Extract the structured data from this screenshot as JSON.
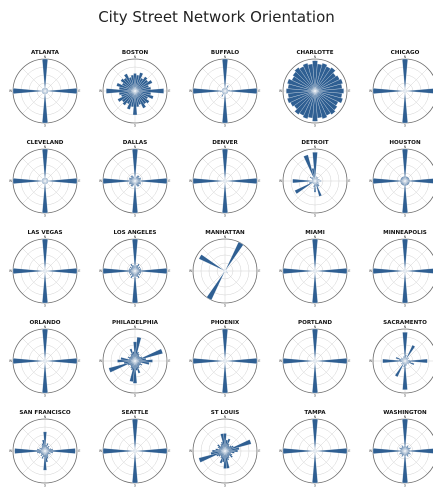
{
  "title": "City Street Network Orientation",
  "colors": {
    "bar": "#2f5f92",
    "ring": "#d2d2d2",
    "outer": "#6a6a6a"
  },
  "chart_data": {
    "type": "polar-bar",
    "title": "City Street Network Orientation",
    "direction_labels": [
      "N",
      "E",
      "S",
      "W"
    ],
    "bins": 36,
    "cities": [
      {
        "name": "ATLANTA",
        "values": [
          1,
          0.1,
          0.1,
          0.1,
          0.1,
          0.1,
          0.1,
          0.1,
          0.1,
          1,
          0.1,
          0.1,
          0.1,
          0.1,
          0.1,
          0.1,
          0.1,
          0.1,
          1,
          0.1,
          0.1,
          0.1,
          0.1,
          0.1,
          0.1,
          0.1,
          0.1,
          1,
          0.1,
          0.1,
          0.1,
          0.1,
          0.1,
          0.1,
          0.1,
          0.1
        ]
      },
      {
        "name": "BOSTON",
        "values": [
          0.55,
          0.5,
          0.6,
          0.45,
          0.55,
          0.5,
          0.6,
          0.45,
          0.5,
          0.9,
          0.5,
          0.6,
          0.45,
          0.55,
          0.5,
          0.6,
          0.45,
          0.5,
          0.75,
          0.5,
          0.6,
          0.45,
          0.55,
          0.5,
          0.6,
          0.45,
          0.5,
          0.9,
          0.5,
          0.6,
          0.45,
          0.55,
          0.5,
          0.6,
          0.45,
          0.5
        ]
      },
      {
        "name": "BUFFALO",
        "values": [
          1,
          0.1,
          0.1,
          0.2,
          0.1,
          0.1,
          0.1,
          0.1,
          0.15,
          1,
          0.1,
          0.1,
          0.1,
          0.1,
          0.1,
          0.1,
          0.1,
          0.1,
          1,
          0.1,
          0.1,
          0.2,
          0.1,
          0.1,
          0.1,
          0.1,
          0.15,
          1,
          0.1,
          0.1,
          0.1,
          0.1,
          0.1,
          0.1,
          0.1,
          0.1
        ]
      },
      {
        "name": "CHARLOTTE",
        "values": [
          0.95,
          0.85,
          0.9,
          0.85,
          0.9,
          0.8,
          0.85,
          0.9,
          0.85,
          0.9,
          0.85,
          0.9,
          0.8,
          0.85,
          0.9,
          0.85,
          0.9,
          0.85,
          0.95,
          0.85,
          0.9,
          0.85,
          0.9,
          0.8,
          0.85,
          0.9,
          0.85,
          0.9,
          0.85,
          0.9,
          0.8,
          0.85,
          0.9,
          0.85,
          0.9,
          0.85
        ]
      },
      {
        "name": "CHICAGO",
        "values": [
          1,
          0.05,
          0.05,
          0.05,
          0.05,
          0.05,
          0.05,
          0.05,
          0.05,
          1,
          0.05,
          0.05,
          0.05,
          0.05,
          0.05,
          0.05,
          0.05,
          0.05,
          1,
          0.05,
          0.05,
          0.05,
          0.05,
          0.05,
          0.05,
          0.05,
          0.05,
          1,
          0.05,
          0.05,
          0.05,
          0.05,
          0.05,
          0.05,
          0.05,
          0.05
        ]
      },
      {
        "name": "CLEVELAND",
        "values": [
          1,
          0.1,
          0.1,
          0.1,
          0.1,
          0.1,
          0.1,
          0.1,
          0.1,
          1,
          0.1,
          0.1,
          0.1,
          0.1,
          0.1,
          0.1,
          0.1,
          0.1,
          1,
          0.1,
          0.1,
          0.1,
          0.1,
          0.1,
          0.1,
          0.1,
          0.1,
          1,
          0.1,
          0.1,
          0.1,
          0.1,
          0.1,
          0.1,
          0.1,
          0.1
        ]
      },
      {
        "name": "DALLAS",
        "values": [
          1,
          0.1,
          0.15,
          0.2,
          0.2,
          0.15,
          0.2,
          0.2,
          0.15,
          1,
          0.15,
          0.2,
          0.2,
          0.15,
          0.2,
          0.2,
          0.15,
          0.1,
          1,
          0.1,
          0.15,
          0.2,
          0.2,
          0.15,
          0.2,
          0.2,
          0.15,
          1,
          0.15,
          0.2,
          0.2,
          0.15,
          0.2,
          0.2,
          0.15,
          0.1
        ]
      },
      {
        "name": "DENVER",
        "values": [
          1,
          0.05,
          0.05,
          0.05,
          0.05,
          0.05,
          0.05,
          0.05,
          0.05,
          1,
          0.05,
          0.05,
          0.05,
          0.05,
          0.05,
          0.05,
          0.05,
          0.05,
          1,
          0.05,
          0.05,
          0.05,
          0.05,
          0.05,
          0.05,
          0.05,
          0.05,
          1,
          0.05,
          0.05,
          0.05,
          0.05,
          0.05,
          0.05,
          0.05,
          0.05
        ]
      },
      {
        "name": "DETROIT",
        "values": [
          0.9,
          0.1,
          0.15,
          0.1,
          0.15,
          0.1,
          0.1,
          0.15,
          0.1,
          0.2,
          0.1,
          0.1,
          0.15,
          0.1,
          0.2,
          0.2,
          0.5,
          0.15,
          0.35,
          0.2,
          0.1,
          0.1,
          0.1,
          0.1,
          0.7,
          0.2,
          0.1,
          0.7,
          0.1,
          0.1,
          0.1,
          0.2,
          0.15,
          0.1,
          0.85,
          0.4
        ]
      },
      {
        "name": "HOUSTON",
        "values": [
          1,
          0.15,
          0.15,
          0.15,
          0.15,
          0.15,
          0.15,
          0.15,
          0.15,
          1,
          0.15,
          0.15,
          0.15,
          0.15,
          0.15,
          0.15,
          0.15,
          0.15,
          1,
          0.15,
          0.15,
          0.15,
          0.15,
          0.15,
          0.15,
          0.15,
          0.15,
          1,
          0.15,
          0.15,
          0.15,
          0.15,
          0.15,
          0.15,
          0.15,
          0.15
        ]
      },
      {
        "name": "LAS VEGAS",
        "values": [
          1,
          0.05,
          0.05,
          0.05,
          0.05,
          0.05,
          0.05,
          0.05,
          0.05,
          1,
          0.05,
          0.05,
          0.05,
          0.05,
          0.05,
          0.05,
          0.05,
          0.05,
          1,
          0.05,
          0.05,
          0.05,
          0.05,
          0.05,
          0.05,
          0.05,
          0.05,
          1,
          0.05,
          0.05,
          0.05,
          0.05,
          0.05,
          0.05,
          0.05,
          0.05
        ]
      },
      {
        "name": "LOS ANGELES",
        "values": [
          1,
          0.15,
          0.2,
          0.25,
          0.15,
          0.2,
          0.15,
          0.2,
          0.2,
          1,
          0.2,
          0.2,
          0.15,
          0.2,
          0.15,
          0.25,
          0.2,
          0.15,
          1,
          0.15,
          0.2,
          0.25,
          0.15,
          0.2,
          0.15,
          0.2,
          0.2,
          1,
          0.2,
          0.2,
          0.15,
          0.2,
          0.15,
          0.25,
          0.2,
          0.15
        ]
      },
      {
        "name": "MANHATTAN",
        "values": [
          0.05,
          0.05,
          0.05,
          1,
          0.1,
          0.05,
          0.05,
          0.05,
          0.05,
          0.05,
          0.05,
          0.05,
          0.1,
          0.05,
          0.05,
          0.05,
          0.05,
          0.05,
          0.05,
          0.05,
          0.05,
          1,
          0.1,
          0.05,
          0.05,
          0.05,
          0.05,
          0.05,
          0.05,
          0.05,
          0.9,
          0.05,
          0.05,
          0.05,
          0.05,
          0.05
        ]
      },
      {
        "name": "MIAMI",
        "values": [
          1,
          0.05,
          0.05,
          0.05,
          0.05,
          0.05,
          0.05,
          0.05,
          0.05,
          1,
          0.05,
          0.05,
          0.05,
          0.05,
          0.05,
          0.05,
          0.05,
          0.05,
          1,
          0.05,
          0.05,
          0.05,
          0.05,
          0.05,
          0.05,
          0.05,
          0.05,
          1,
          0.05,
          0.05,
          0.05,
          0.05,
          0.05,
          0.05,
          0.05,
          0.05
        ]
      },
      {
        "name": "MINNEAPOLIS",
        "values": [
          1,
          0.05,
          0.05,
          0.05,
          0.05,
          0.05,
          0.05,
          0.05,
          0.05,
          1,
          0.05,
          0.05,
          0.05,
          0.05,
          0.05,
          0.05,
          0.05,
          0.05,
          1,
          0.05,
          0.05,
          0.05,
          0.05,
          0.05,
          0.05,
          0.05,
          0.05,
          1,
          0.05,
          0.05,
          0.05,
          0.05,
          0.05,
          0.05,
          0.05,
          0.05
        ]
      },
      {
        "name": "ORLANDO",
        "values": [
          1,
          0.05,
          0.05,
          0.05,
          0.05,
          0.05,
          0.05,
          0.05,
          0.05,
          1,
          0.05,
          0.05,
          0.05,
          0.05,
          0.05,
          0.05,
          0.05,
          0.05,
          1,
          0.05,
          0.05,
          0.05,
          0.05,
          0.05,
          0.05,
          0.05,
          0.05,
          1,
          0.05,
          0.05,
          0.05,
          0.05,
          0.05,
          0.05,
          0.05,
          0.05
        ]
      },
      {
        "name": "PHILADELPHIA",
        "values": [
          0.6,
          0.75,
          0.3,
          0.25,
          0.2,
          0.2,
          0.25,
          0.9,
          0.35,
          0.55,
          0.45,
          0.2,
          0.25,
          0.2,
          0.2,
          0.25,
          0.4,
          0.3,
          0.7,
          0.65,
          0.3,
          0.25,
          0.2,
          0.2,
          0.25,
          0.85,
          0.35,
          0.55,
          0.45,
          0.2,
          0.25,
          0.2,
          0.2,
          0.25,
          0.4,
          0.3
        ]
      },
      {
        "name": "PHOENIX",
        "values": [
          1,
          0.05,
          0.05,
          0.05,
          0.05,
          0.05,
          0.05,
          0.05,
          0.05,
          1,
          0.05,
          0.05,
          0.05,
          0.05,
          0.05,
          0.05,
          0.05,
          0.05,
          1,
          0.05,
          0.05,
          0.05,
          0.05,
          0.05,
          0.05,
          0.05,
          0.05,
          1,
          0.05,
          0.05,
          0.05,
          0.05,
          0.05,
          0.05,
          0.05,
          0.05
        ]
      },
      {
        "name": "PORTLAND",
        "values": [
          1,
          0.05,
          0.05,
          0.05,
          0.05,
          0.05,
          0.05,
          0.05,
          0.05,
          1,
          0.05,
          0.05,
          0.05,
          0.05,
          0.05,
          0.05,
          0.05,
          0.05,
          1,
          0.05,
          0.05,
          0.05,
          0.05,
          0.05,
          0.05,
          0.05,
          0.05,
          1,
          0.05,
          0.05,
          0.05,
          0.05,
          0.05,
          0.05,
          0.05,
          0.05
        ]
      },
      {
        "name": "SACRAMENTO",
        "values": [
          0.9,
          0.2,
          0.1,
          0.55,
          0.1,
          0.15,
          0.1,
          0.1,
          0.15,
          0.7,
          0.2,
          0.3,
          0.1,
          0.15,
          0.1,
          0.1,
          0.15,
          0.15,
          0.9,
          0.2,
          0.1,
          0.55,
          0.1,
          0.15,
          0.1,
          0.1,
          0.15,
          0.7,
          0.2,
          0.3,
          0.1,
          0.15,
          0.1,
          0.1,
          0.15,
          0.15
        ]
      },
      {
        "name": "SAN FRANCISCO",
        "values": [
          0.6,
          0.2,
          0.25,
          0.15,
          0.2,
          0.15,
          0.15,
          0.2,
          0.25,
          0.95,
          0.25,
          0.15,
          0.2,
          0.15,
          0.15,
          0.2,
          0.25,
          0.35,
          0.6,
          0.2,
          0.25,
          0.15,
          0.2,
          0.15,
          0.15,
          0.2,
          0.25,
          0.95,
          0.25,
          0.15,
          0.2,
          0.15,
          0.15,
          0.2,
          0.25,
          0.35
        ]
      },
      {
        "name": "SEATTLE",
        "values": [
          1,
          0.05,
          0.05,
          0.05,
          0.05,
          0.05,
          0.05,
          0.05,
          0.05,
          1,
          0.05,
          0.05,
          0.05,
          0.05,
          0.05,
          0.05,
          0.05,
          0.05,
          1,
          0.05,
          0.05,
          0.05,
          0.05,
          0.05,
          0.05,
          0.05,
          0.05,
          1,
          0.05,
          0.05,
          0.05,
          0.05,
          0.05,
          0.05,
          0.05,
          0.05
        ]
      },
      {
        "name": "ST LOUIS",
        "values": [
          0.55,
          0.35,
          0.4,
          0.25,
          0.2,
          0.25,
          0.3,
          0.85,
          0.45,
          0.4,
          0.3,
          0.2,
          0.25,
          0.3,
          0.2,
          0.25,
          0.3,
          0.55,
          0.55,
          0.35,
          0.4,
          0.25,
          0.2,
          0.25,
          0.3,
          0.85,
          0.45,
          0.4,
          0.3,
          0.2,
          0.25,
          0.3,
          0.2,
          0.25,
          0.3,
          0.55
        ]
      },
      {
        "name": "TAMPA",
        "values": [
          1,
          0.05,
          0.05,
          0.05,
          0.05,
          0.05,
          0.05,
          0.05,
          0.05,
          1,
          0.05,
          0.05,
          0.05,
          0.05,
          0.05,
          0.05,
          0.05,
          0.05,
          1,
          0.05,
          0.05,
          0.05,
          0.05,
          0.05,
          0.05,
          0.05,
          0.05,
          1,
          0.05,
          0.05,
          0.05,
          0.05,
          0.05,
          0.05,
          0.05,
          0.05
        ]
      },
      {
        "name": "WASHINGTON",
        "values": [
          1,
          0.15,
          0.15,
          0.2,
          0.15,
          0.15,
          0.2,
          0.15,
          0.15,
          1,
          0.15,
          0.15,
          0.2,
          0.15,
          0.15,
          0.2,
          0.15,
          0.15,
          1,
          0.15,
          0.15,
          0.2,
          0.15,
          0.15,
          0.2,
          0.15,
          0.15,
          1,
          0.15,
          0.15,
          0.2,
          0.15,
          0.15,
          0.2,
          0.15,
          0.15
        ]
      }
    ]
  }
}
